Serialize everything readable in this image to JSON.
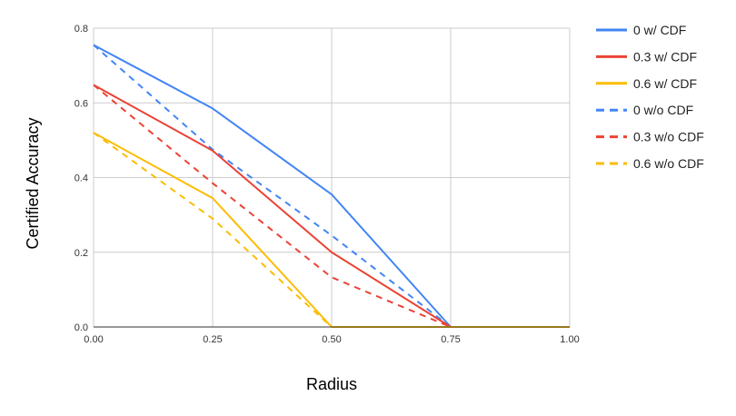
{
  "chart_data": {
    "type": "line",
    "xlabel": "Radius",
    "ylabel": "Certified Accuracy",
    "xlim": [
      0,
      1
    ],
    "ylim": [
      0,
      0.8
    ],
    "xticks": [
      "0.00",
      "0.25",
      "0.50",
      "0.75",
      "1.00"
    ],
    "yticks": [
      "0.0",
      "0.2",
      "0.4",
      "0.6",
      "0.8"
    ],
    "grid": true,
    "legend_position": "right",
    "x": [
      0,
      0.25,
      0.5,
      0.75,
      1.0
    ],
    "series": [
      {
        "name": "0 w/ CDF",
        "color": "#4285F4",
        "dashed": false,
        "values": [
          0.755,
          0.585,
          0.355,
          0,
          0
        ]
      },
      {
        "name": "0.3 w/ CDF",
        "color": "#EA4335",
        "dashed": false,
        "values": [
          0.648,
          0.472,
          0.2,
          0,
          0
        ]
      },
      {
        "name": "0.6 w/ CDF",
        "color": "#FBBC04",
        "dashed": false,
        "values": [
          0.52,
          0.345,
          0,
          0,
          0
        ]
      },
      {
        "name": "0 w/o CDF",
        "color": "#4285F4",
        "dashed": true,
        "values": [
          0.755,
          0.475,
          0.245,
          0,
          0
        ]
      },
      {
        "name": "0.3 w/o CDF",
        "color": "#EA4335",
        "dashed": true,
        "values": [
          0.648,
          0.385,
          0.133,
          0,
          0
        ]
      },
      {
        "name": "0.6 w/o CDF",
        "color": "#FBBC04",
        "dashed": true,
        "values": [
          0.52,
          0.29,
          0,
          0,
          0
        ]
      }
    ]
  }
}
